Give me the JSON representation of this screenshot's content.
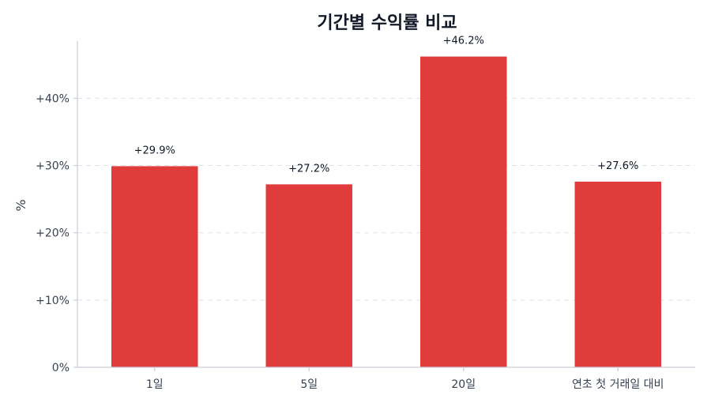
{
  "chart_data": {
    "type": "bar",
    "title": "기간별 수익률 비교",
    "ylabel": "%",
    "xlabel": "",
    "categories": [
      "1일",
      "5일",
      "20일",
      "연초 첫 거래일 대비"
    ],
    "values": [
      29.9,
      27.2,
      46.2,
      27.6
    ],
    "data_labels": [
      "+29.9%",
      "+27.2%",
      "+46.2%",
      "+27.6%"
    ],
    "ylim": [
      0,
      48.5
    ],
    "yticks": [
      0,
      10,
      20,
      30,
      40
    ],
    "ytick_labels": [
      "0%",
      "+10%",
      "+20%",
      "+30%",
      "+40%"
    ],
    "grid": true,
    "bar_color": "#e03c3c"
  }
}
